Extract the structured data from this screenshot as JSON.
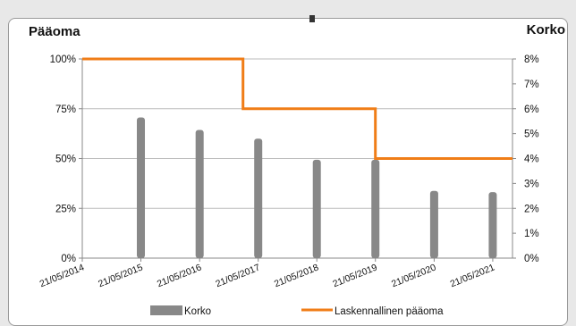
{
  "chart_data": {
    "type": "bar+line",
    "left_axis_title": "Pääoma",
    "right_axis_title": "Korko",
    "left_ticks": [
      "0%",
      "25%",
      "50%",
      "75%",
      "100%"
    ],
    "right_ticks": [
      "0%",
      "1%",
      "2%",
      "3%",
      "4%",
      "5%",
      "6%",
      "7%",
      "8%"
    ],
    "left_ylim": [
      0,
      100
    ],
    "right_ylim": [
      0,
      8
    ],
    "x_tick_labels": [
      "21/05/2014",
      "21/05/2015",
      "21/05/2016",
      "21/05/2017",
      "21/05/2018",
      "21/05/2019",
      "21/05/2020",
      "21/05/2021"
    ],
    "x_domain": [
      "2014-05-21",
      "2021-09-21"
    ],
    "bars": {
      "name": "Korko",
      "axis": "right",
      "color": "#888888",
      "points": [
        {
          "date": "2015-05-21",
          "value": 5.65
        },
        {
          "date": "2016-05-21",
          "value": 5.15
        },
        {
          "date": "2017-05-21",
          "value": 4.8
        },
        {
          "date": "2018-05-21",
          "value": 3.95
        },
        {
          "date": "2019-05-21",
          "value": 3.95
        },
        {
          "date": "2020-05-21",
          "value": 2.7
        },
        {
          "date": "2021-05-21",
          "value": 2.65
        }
      ]
    },
    "line": {
      "name": "Laskennallinen pääoma",
      "axis": "left",
      "color": "#f07d17",
      "points": [
        {
          "date": "2014-05-21",
          "value": 100
        },
        {
          "date": "2017-02-15",
          "value": 100
        },
        {
          "date": "2017-02-15",
          "value": 75
        },
        {
          "date": "2019-05-21",
          "value": 75
        },
        {
          "date": "2019-05-21",
          "value": 50
        },
        {
          "date": "2021-09-21",
          "value": 50
        }
      ]
    },
    "grid": true,
    "legend": "bottom",
    "grid_color": "#bbbbbb"
  }
}
